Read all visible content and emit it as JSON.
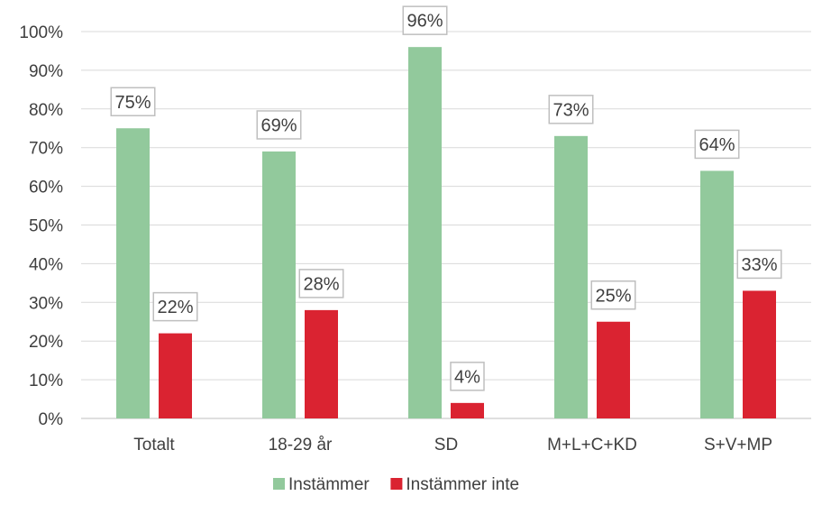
{
  "chart_data": {
    "type": "bar",
    "title": "",
    "xlabel": "",
    "ylabel": "",
    "categories": [
      "Totalt",
      "18-29 år",
      "SD",
      "M+L+C+KD",
      "S+V+MP"
    ],
    "series": [
      {
        "name": "Instämmer",
        "color": "#92c99c",
        "values": [
          75,
          69,
          96,
          73,
          64
        ]
      },
      {
        "name": "Instämmer inte",
        "color": "#da2331",
        "values": [
          22,
          28,
          4,
          25,
          33
        ]
      }
    ],
    "data_labels": [
      [
        "75%",
        "69%",
        "96%",
        "73%",
        "64%"
      ],
      [
        "22%",
        "28%",
        "4%",
        "25%",
        "33%"
      ]
    ],
    "y_ticks": [
      "0%",
      "10%",
      "20%",
      "30%",
      "40%",
      "50%",
      "60%",
      "70%",
      "80%",
      "90%",
      "100%"
    ],
    "ylim": [
      0,
      100
    ],
    "grid": true,
    "legend_position": "bottom"
  }
}
